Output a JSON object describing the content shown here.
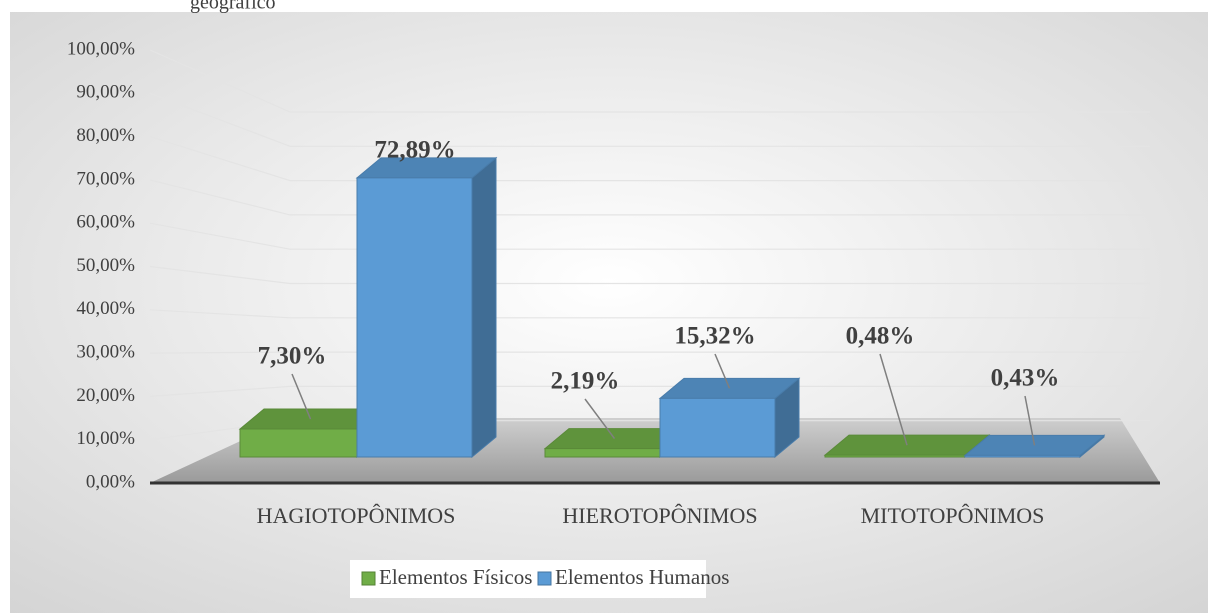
{
  "chart_data": {
    "type": "bar3d",
    "caption": "geográfico",
    "categories": [
      "HAGIOTOPÔNIMOS",
      "HIEROTOPÔNIMOS",
      "MITOTOPÔNIMOS"
    ],
    "series": [
      {
        "name": "Elementos Físicos",
        "color": "#70ad47",
        "values": [
          7.3,
          2.19,
          0.48
        ],
        "value_labels": [
          "7,30%",
          "2,19%",
          "0,48%"
        ]
      },
      {
        "name": "Elementos Humanos",
        "color": "#5b9bd5",
        "values": [
          72.89,
          15.32,
          0.43
        ],
        "value_labels": [
          "72,89%",
          "15,32%",
          "0,43%"
        ]
      }
    ],
    "ylim": [
      0,
      100
    ],
    "yticks": [
      {
        "value": 0,
        "label": "0,00%"
      },
      {
        "value": 10,
        "label": "10,00%"
      },
      {
        "value": 20,
        "label": "20,00%"
      },
      {
        "value": 30,
        "label": "30,00%"
      },
      {
        "value": 40,
        "label": "40,00%"
      },
      {
        "value": 50,
        "label": "50,00%"
      },
      {
        "value": 60,
        "label": "60,00%"
      },
      {
        "value": 70,
        "label": "70,00%"
      },
      {
        "value": 80,
        "label": "80,00%"
      },
      {
        "value": 90,
        "label": "90,00%"
      },
      {
        "value": 100,
        "label": "100,00%"
      }
    ],
    "grid": true,
    "legend": "bottom"
  }
}
